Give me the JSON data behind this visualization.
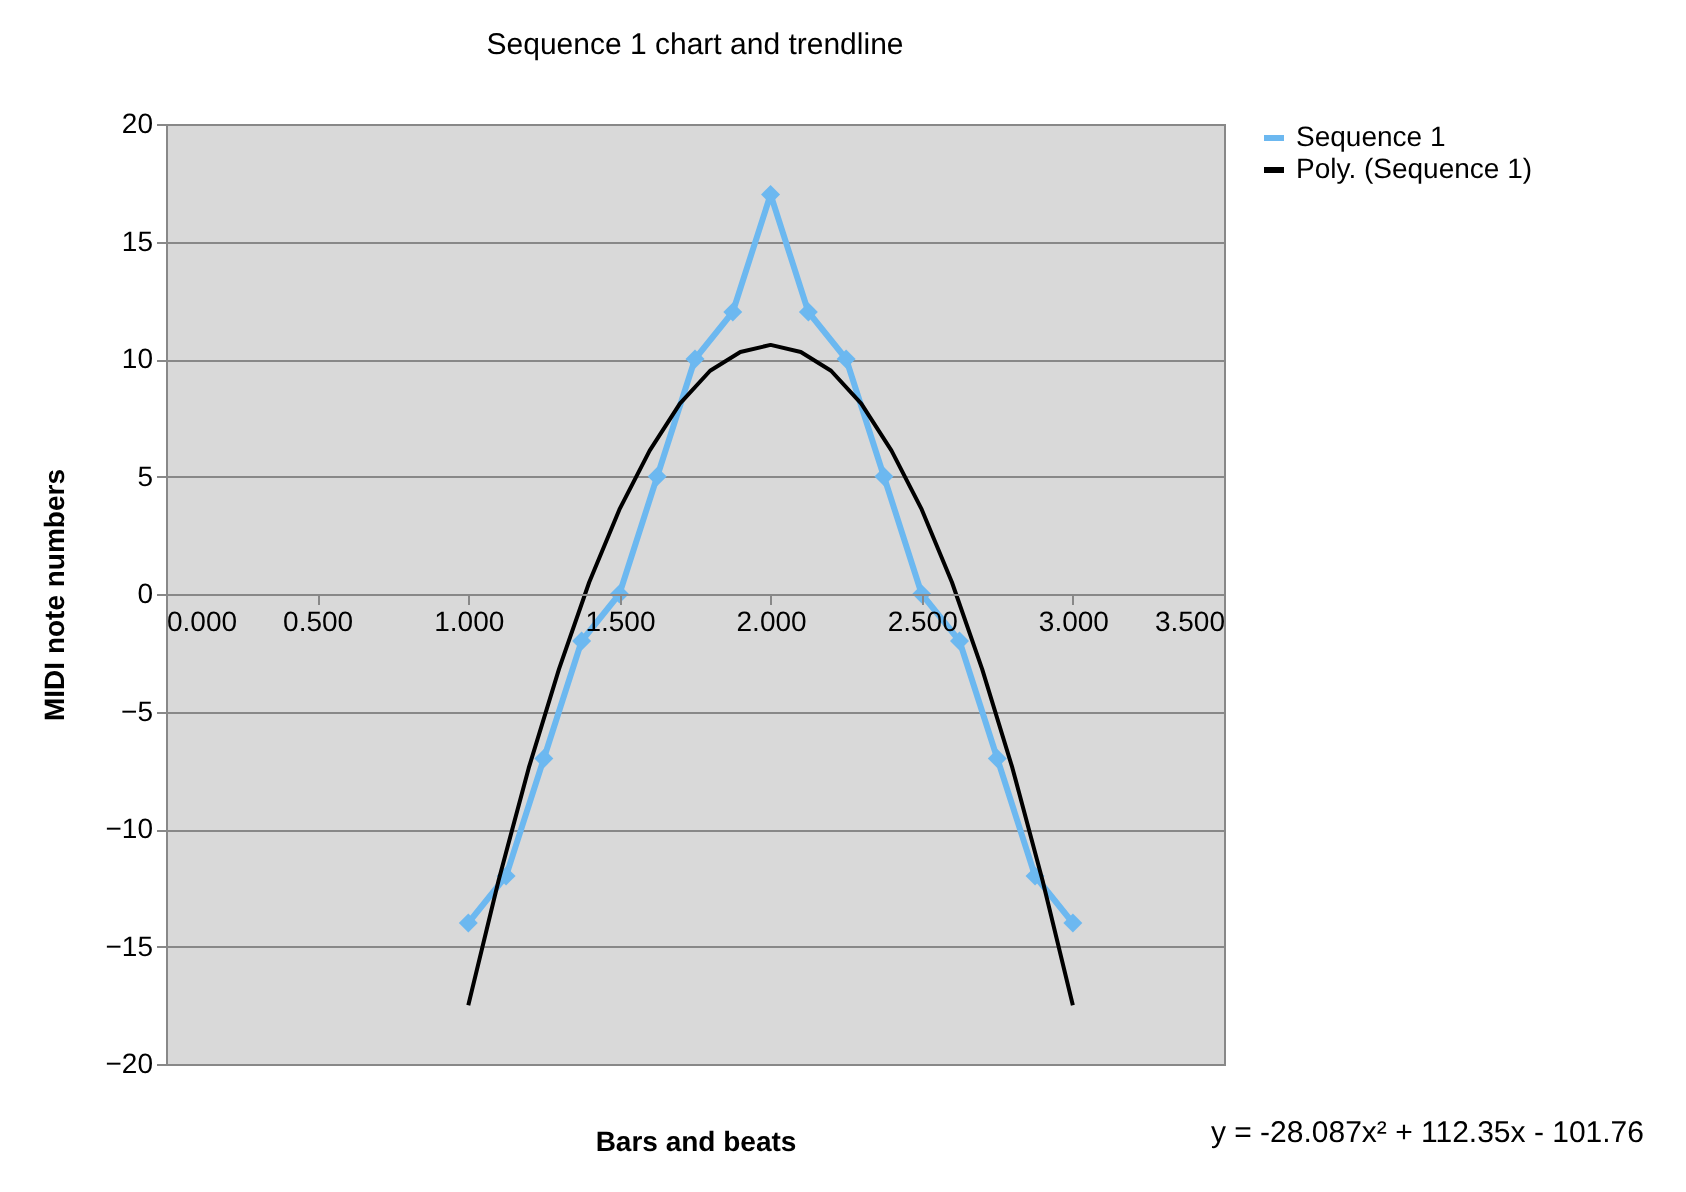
{
  "chart_data": {
    "type": "line",
    "title": "Sequence 1 chart and trendline",
    "xlabel": "Bars and beats",
    "ylabel": "MIDI note numbers",
    "xlim": [
      0,
      3.5
    ],
    "ylim": [
      -20,
      20
    ],
    "xticks": [
      {
        "value": 0,
        "label": "0.000"
      },
      {
        "value": 0.5,
        "label": "0.500"
      },
      {
        "value": 1,
        "label": "1.000"
      },
      {
        "value": 1.5,
        "label": "1.500"
      },
      {
        "value": 2,
        "label": "2.000"
      },
      {
        "value": 2.5,
        "label": "2.500"
      },
      {
        "value": 3,
        "label": "3.000"
      },
      {
        "value": 3.5,
        "label": "3.500"
      }
    ],
    "yticks": [
      -20,
      -15,
      -10,
      -5,
      0,
      5,
      10,
      15,
      20
    ],
    "grid": "y",
    "legend": "right",
    "series": [
      {
        "name": "Sequence 1",
        "color": "#6cb8f0",
        "marker": "diamond",
        "line_style": "solid",
        "x": [
          1,
          1.125,
          1.25,
          1.375,
          1.5,
          1.625,
          1.75,
          1.875,
          2,
          2.125,
          2.25,
          2.375,
          2.5,
          2.625,
          2.75,
          2.875,
          3
        ],
        "values": [
          -14,
          -12,
          -7,
          -2,
          0,
          5,
          10,
          12,
          17,
          12,
          10,
          5,
          0,
          -2,
          -7,
          -12,
          -14
        ]
      },
      {
        "name": "Poly. (Sequence 1)",
        "color": "#000000",
        "marker": "none",
        "line_style": "solid",
        "x": [
          1,
          1.1,
          1.2,
          1.3,
          1.4,
          1.5,
          1.6,
          1.7,
          1.8,
          1.9,
          2,
          2.1,
          2.2,
          2.3,
          2.4,
          2.5,
          2.6,
          2.7,
          2.8,
          2.9,
          3
        ],
        "values": [
          -17.5,
          -12.2,
          -7.4,
          -3.2,
          0.5,
          3.6,
          6.1,
          8.1,
          9.5,
          10.3,
          10.6,
          10.3,
          9.5,
          8.1,
          6.1,
          3.6,
          0.5,
          -3.2,
          -7.4,
          -12.2,
          -17.5
        ]
      }
    ],
    "annotations": [
      "y = -28.087x² + 112.35x - 101.76"
    ]
  }
}
